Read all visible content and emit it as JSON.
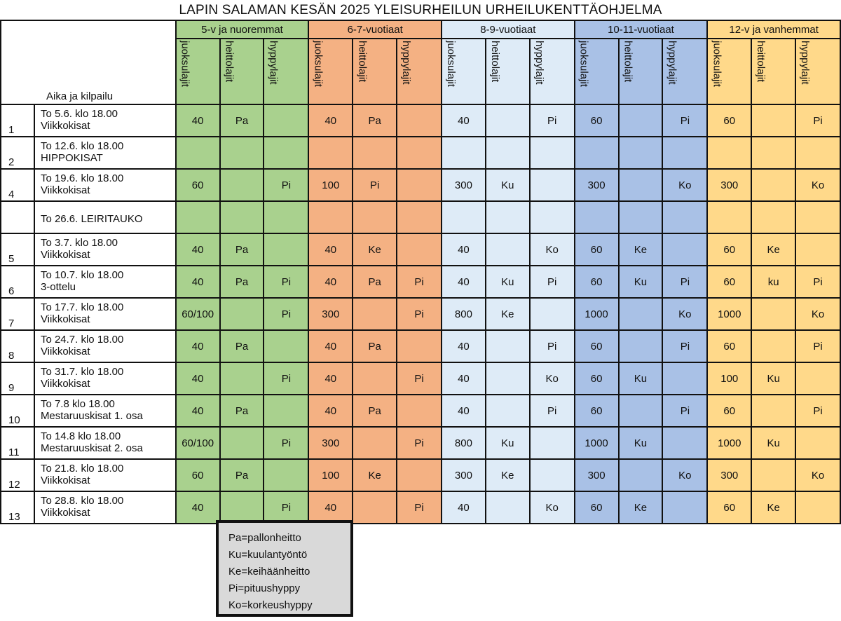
{
  "title": "LAPIN SALAMAN KESÄN 2025 YLEISURHEILUN URHEILUKENTTÄOHJELMA",
  "corner_label": "Aika ja kilpailu",
  "subheaders": [
    "juoksulajit",
    "heittolajit",
    "hyppylajit"
  ],
  "groups": [
    "5-v ja nuoremmat",
    "6-7-vuotiaat",
    "8-9-vuotiaat",
    "10-11-vuotiaat",
    "12-v ja vanhemmat"
  ],
  "group_colors": [
    "#a9d18e",
    "#f4b183",
    "#deebf7",
    "#a9c1e6",
    "#ffd98a"
  ],
  "rows": [
    {
      "num": "1",
      "date": "To 5.6. klo 18.00",
      "event": "Viikkokisat",
      "cells": [
        "40",
        "Pa",
        "",
        "40",
        "Pa",
        "",
        "40",
        "",
        "Pi",
        "60",
        "",
        "Pi",
        "60",
        "",
        "Pi"
      ]
    },
    {
      "num": "2",
      "date": "To 12.6. klo 18.00",
      "event": "HIPPOKISAT",
      "cells": [
        "",
        "",
        "",
        "",
        "",
        "",
        "",
        "",
        "",
        "",
        "",
        "",
        "",
        "",
        ""
      ]
    },
    {
      "num": "4",
      "date": "To 19.6. klo 18.00",
      "event": "Viikkokisat",
      "cells": [
        "60",
        "",
        "Pi",
        "100",
        "Pi",
        "",
        "300",
        "Ku",
        "",
        "300",
        "",
        "Ko",
        "300",
        "",
        "Ko"
      ]
    },
    {
      "num": "",
      "date": "To 26.6. LEIRITAUKO",
      "event": "",
      "cells": [
        "",
        "",
        "",
        "",
        "",
        "",
        "",
        "",
        "",
        "",
        "",
        "",
        "",
        "",
        ""
      ]
    },
    {
      "num": "5",
      "date": "To 3.7. klo 18.00",
      "event": "Viikkokisat",
      "cells": [
        "40",
        "Pa",
        "",
        "40",
        "Ke",
        "",
        "40",
        "",
        "Ko",
        "60",
        "Ke",
        "",
        "60",
        "Ke",
        ""
      ]
    },
    {
      "num": "6",
      "date": "To 10.7. klo 18.00",
      "event": "3-ottelu",
      "cells": [
        "40",
        "Pa",
        "Pi",
        "40",
        "Pa",
        "Pi",
        "40",
        "Ku",
        "Pi",
        "60",
        "Ku",
        "Pi",
        "60",
        "ku",
        "Pi"
      ]
    },
    {
      "num": "7",
      "date": "To 17.7. klo 18.00",
      "event": "Viikkokisat",
      "cells": [
        "60/100",
        "",
        "Pi",
        "300",
        "",
        "Pi",
        "800",
        "Ke",
        "",
        "1000",
        "",
        "Ko",
        "1000",
        "",
        "Ko"
      ]
    },
    {
      "num": "8",
      "date": "To 24.7. klo 18.00",
      "event": "Viikkokisat",
      "cells": [
        "40",
        "Pa",
        "",
        "40",
        "Pa",
        "",
        "40",
        "",
        "Pi",
        "60",
        "",
        "Pi",
        "60",
        "",
        "Pi"
      ]
    },
    {
      "num": "9",
      "date": "To 31.7. klo 18.00",
      "event": "Viikkokisat",
      "cells": [
        "40",
        "",
        "Pi",
        "40",
        "",
        "Pi",
        "40",
        "",
        "Ko",
        "60",
        "Ku",
        "",
        "100",
        "Ku",
        ""
      ]
    },
    {
      "num": "10",
      "date": "To 7.8 klo 18.00",
      "event": "Mestaruuskisat 1. osa",
      "cells": [
        "40",
        "Pa",
        "",
        "40",
        "Pa",
        "",
        "40",
        "",
        "Pi",
        "60",
        "",
        "Pi",
        "60",
        "",
        "Pi"
      ]
    },
    {
      "num": "11",
      "date": "To 14.8 klo 18.00",
      "event": "Mestaruuskisat 2. osa",
      "cells": [
        "60/100",
        "",
        "Pi",
        "300",
        "",
        "Pi",
        "800",
        "Ku",
        "",
        "1000",
        "Ku",
        "",
        "1000",
        "Ku",
        ""
      ]
    },
    {
      "num": "12",
      "date": "To 21.8. klo 18.00",
      "event": "Viikkokisat",
      "cells": [
        "60",
        "Pa",
        "",
        "100",
        "Ke",
        "",
        "300",
        "Ke",
        "",
        "300",
        "",
        "Ko",
        "300",
        "",
        "Ko"
      ]
    },
    {
      "num": "13",
      "date": "To 28.8. klo 18.00",
      "event": "Viikkokisat",
      "cells": [
        "40",
        "",
        "Pi",
        "40",
        "",
        "Pi",
        "40",
        "",
        "Ko",
        "60",
        "Ke",
        "",
        "60",
        "Ke",
        ""
      ]
    }
  ],
  "legend": [
    "Pa=pallonheitto",
    "Ku=kuulantyöntö",
    "Ke=keihäänheitto",
    "Pi=pituushyppy",
    "Ko=korkeushyppy"
  ]
}
